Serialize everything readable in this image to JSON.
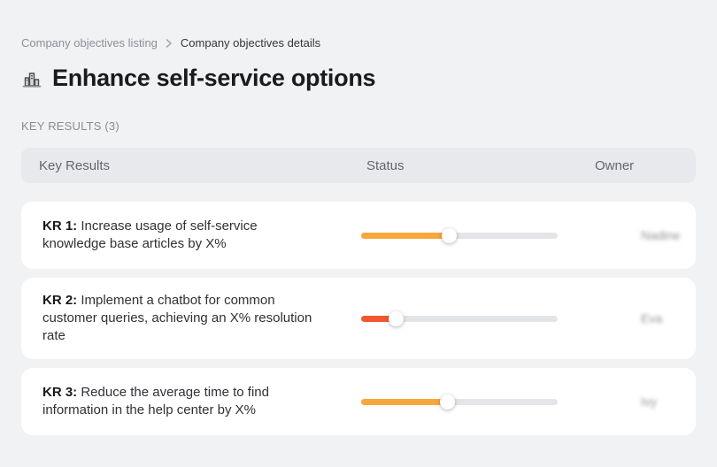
{
  "breadcrumb": {
    "items": [
      "Company objectives listing",
      "Company objectives details"
    ],
    "separator_icon": "chevron-right-icon"
  },
  "header": {
    "icon": "buildings-icon",
    "title": "Enhance self-service options"
  },
  "section": {
    "label": "KEY RESULTS (3)"
  },
  "table": {
    "columns": [
      "Key Results",
      "Status",
      "Owner"
    ],
    "rows": [
      {
        "kr_label": "KR 1:",
        "kr_text": "Increase usage of self-service knowledge base articles by X%",
        "progress_percent": 45,
        "progress_color": "#F9A63C",
        "owner": "Nadine"
      },
      {
        "kr_label": "KR 2:",
        "kr_text": "Implement a chatbot for common customer queries, achieving an X% resolution rate",
        "progress_percent": 18,
        "progress_color": "#F4572F",
        "owner": "Eva"
      },
      {
        "kr_label": "KR 3:",
        "kr_text": "Reduce the average time to find information in the help center by X%",
        "progress_percent": 44,
        "progress_color": "#F9A63C",
        "owner": "Ivy"
      }
    ]
  },
  "colors": {
    "page_background": "#f1f2f4",
    "card_background": "#ffffff",
    "table_header_background": "#e7e9ed",
    "slider_track": "#e4e5e8",
    "progress_orange": "#F9A63C",
    "progress_red": "#F4572F"
  }
}
